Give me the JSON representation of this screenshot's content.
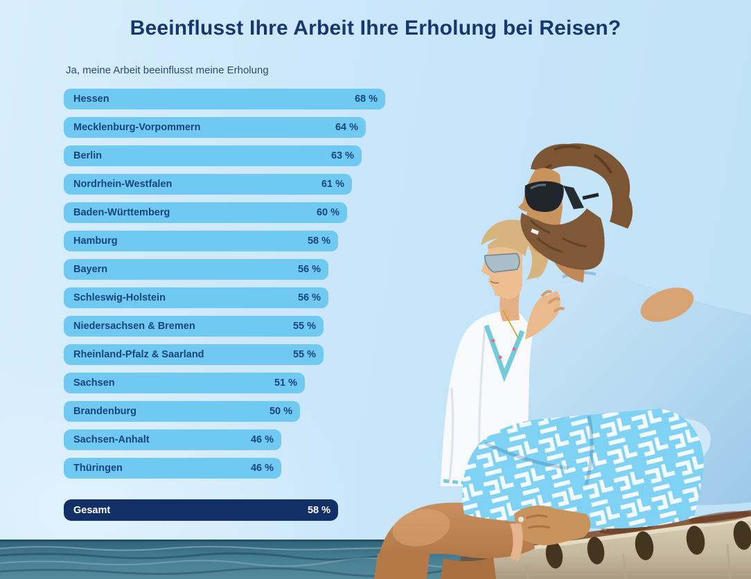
{
  "colors": {
    "title": "#16376F",
    "subtitle": "#2B4A74",
    "bar": "#6FC9F1",
    "bar_text": "#17457C",
    "total_bar": "#122F66",
    "total_text": "#FFFFFF"
  },
  "chart_data": {
    "type": "bar",
    "orientation": "horizontal",
    "title": "Beeinflusst Ihre Arbeit Ihre Erholung bei Reisen?",
    "subtitle": "Ja, meine Arbeit beeinflusst meine Erholung",
    "value_suffix": " %",
    "categories": [
      "Hessen",
      "Mecklenburg-Vorpommern",
      "Berlin",
      "Nordrhein-Westfalen",
      "Baden-Württemberg",
      "Hamburg",
      "Bayern",
      "Schleswig-Holstein",
      "Niedersachsen & Bremen",
      "Rheinland-Pfalz & Saarland",
      "Sachsen",
      "Brandenburg",
      "Sachsen-Anhalt",
      "Thüringen"
    ],
    "values": [
      68,
      64,
      63,
      61,
      60,
      58,
      56,
      56,
      55,
      55,
      51,
      50,
      46,
      46
    ],
    "total": {
      "label": "Gesamt",
      "value": 58
    },
    "xlim": [
      0,
      100
    ],
    "legend": false
  }
}
